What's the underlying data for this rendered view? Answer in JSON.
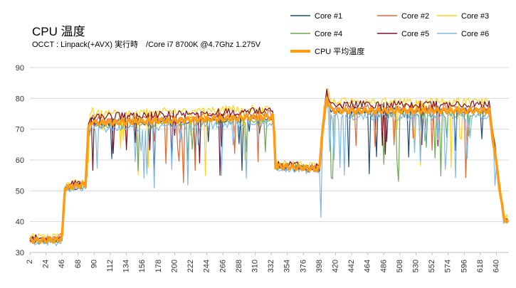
{
  "chart_data": {
    "type": "line",
    "title": "CPU 温度",
    "subtitle": "OCCT : Linpack(+AVX) 実行時　/Core i7 8700K @4.7Ghz 1.275V",
    "xlabel": "",
    "ylabel": "",
    "ylim": [
      30,
      90
    ],
    "yticks": [
      30,
      40,
      50,
      60,
      70,
      80,
      90
    ],
    "xlim": [
      2,
      657
    ],
    "xticks": [
      2,
      24,
      46,
      68,
      90,
      112,
      134,
      156,
      178,
      200,
      222,
      244,
      266,
      288,
      310,
      332,
      354,
      376,
      398,
      420,
      442,
      464,
      486,
      508,
      530,
      552,
      574,
      596,
      618,
      640
    ],
    "grid": "horizontal",
    "legend": "top-right",
    "phases": {
      "x": [
        2,
        40,
        46,
        50,
        78,
        82,
        88,
        92,
        335,
        338,
        342,
        398,
        402,
        408,
        415,
        630,
        650,
        657
      ],
      "avg": [
        34,
        34,
        35,
        51,
        52,
        70,
        73,
        72,
        74,
        58,
        58,
        57,
        70,
        80,
        76,
        76,
        41,
        40
      ]
    },
    "series": [
      {
        "name": "Core #1",
        "color": "#1f4e79",
        "offset": 0,
        "seed": 11
      },
      {
        "name": "Core #2",
        "color": "#e8642a",
        "offset": 1,
        "seed": 23
      },
      {
        "name": "Core #3",
        "color": "#ffd21f",
        "offset": 3,
        "seed": 37
      },
      {
        "name": "Core #4",
        "color": "#6aa84f",
        "offset": -1,
        "seed": 41
      },
      {
        "name": "Core #5",
        "color": "#7b1126",
        "offset": 2,
        "seed": 53
      },
      {
        "name": "Core #6",
        "color": "#7fb8e8",
        "offset": -2,
        "seed": 67
      },
      {
        "name": "CPU 平均温度",
        "color": "#ff9c14",
        "offset": 0,
        "seed": 0,
        "thick": true
      }
    ]
  }
}
